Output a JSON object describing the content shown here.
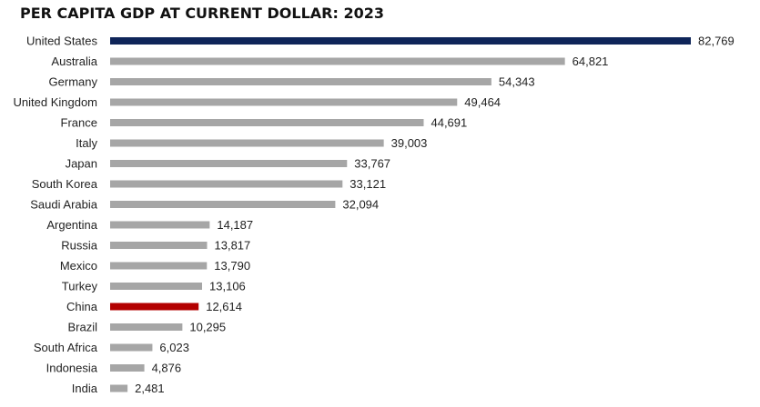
{
  "chart_data": {
    "type": "bar",
    "orientation": "horizontal",
    "title": "PER CAPITA GDP AT CURRENT DOLLAR: 2023",
    "xlabel": "",
    "ylabel": "",
    "grid": false,
    "xlim": [
      0,
      82769
    ],
    "categories": [
      "United States",
      "Australia",
      "Germany",
      "United Kingdom",
      "France",
      "Italy",
      "Japan",
      "South Korea",
      "Saudi Arabia",
      "Argentina",
      "Russia",
      "Mexico",
      "Turkey",
      "China",
      "Brazil",
      "South Africa",
      "Indonesia",
      "India"
    ],
    "values": [
      82769,
      64821,
      54343,
      49464,
      44691,
      39003,
      33767,
      33121,
      32094,
      14187,
      13817,
      13790,
      13106,
      12614,
      10295,
      6023,
      4876,
      2481
    ],
    "value_labels": [
      "82,769",
      "64,821",
      "54,343",
      "49,464",
      "44,691",
      "39,003",
      "33,767",
      "33,121",
      "32,094",
      "14,187",
      "13,817",
      "13,790",
      "13,106",
      "12,614",
      "10,295",
      "6,023",
      "4,876",
      "2,481"
    ],
    "colors": {
      "default": "#a6a6a6",
      "highlights": {
        "United States": "#0f2559",
        "China": "#b30000"
      }
    }
  }
}
